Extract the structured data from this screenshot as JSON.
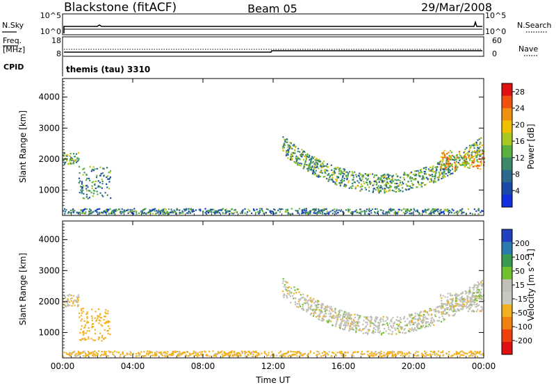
{
  "header": {
    "station": "Blackstone (fitACF)",
    "beam": "Beam 05",
    "date": "29/Mar/2008"
  },
  "top_panels": {
    "nsky_label": "N.Sky",
    "nsearch_label": "N.Search",
    "noise_ticks": [
      "10^5",
      "10^0"
    ],
    "noise_ticks_right": [
      "10^5",
      "10^0"
    ],
    "freq_label": "Freq.",
    "freq_unit": "[MHz]",
    "freq_ticks": [
      "18",
      "8"
    ],
    "nave_label": "Nave",
    "nave_ticks": [
      "60",
      "0"
    ],
    "cpid_label": "CPID",
    "cpid_text": "themis (tau) 3310"
  },
  "colors": {
    "power": [
      "#1030e0",
      "#1a4aa8",
      "#2a6a8c",
      "#3a8a6a",
      "#58b040",
      "#a8c820",
      "#f0c000",
      "#f09010",
      "#f05010",
      "#e01010"
    ],
    "velocity": [
      "#2040c0",
      "#2a7ab0",
      "#3a9a50",
      "#70c030",
      "#c0c0b8",
      "#c8c8c0",
      "#f0b020",
      "#f08010",
      "#f04010",
      "#e01010"
    ]
  },
  "chart_data": [
    {
      "type": "heatmap",
      "title": "",
      "xlabel": "",
      "ylabel": "Slant Range [km]",
      "xticks": [
        "00:00",
        "04:00",
        "08:00",
        "12:00",
        "16:00",
        "20:00",
        "00:00"
      ],
      "yticks": [
        "1000",
        "2000",
        "3000",
        "4000"
      ],
      "xlim": [
        0,
        24
      ],
      "ylim": [
        180,
        4600
      ],
      "colorbar": {
        "label": "Power [dB]",
        "ticks": [
          "4",
          "8",
          "12",
          "16",
          "20",
          "24",
          "28"
        ],
        "range": [
          0,
          30
        ]
      },
      "regions": [
        {
          "t0": 0.0,
          "t1": 0.9,
          "r0": 1850,
          "r1": 2250,
          "level": 0.4
        },
        {
          "t0": 0.9,
          "t1": 2.7,
          "r0": 750,
          "r1": 1800,
          "level": 0.3
        },
        {
          "t0": 12.5,
          "t1": 23.9,
          "r0": 850,
          "r1": 2900,
          "level": 0.35,
          "shape": "arc"
        },
        {
          "t0": 21.5,
          "t1": 24.0,
          "r0": 1700,
          "r1": 2300,
          "level": 0.6
        },
        {
          "t0": 0.0,
          "t1": 24.0,
          "r0": 250,
          "r1": 420,
          "level": 0.25
        }
      ]
    },
    {
      "type": "heatmap",
      "title": "",
      "xlabel": "Time UT",
      "ylabel": "Slant Range [km]",
      "xticks": [
        "00:00",
        "04:00",
        "08:00",
        "12:00",
        "16:00",
        "20:00",
        "00:00"
      ],
      "yticks": [
        "1000",
        "2000",
        "3000",
        "4000"
      ],
      "xlim": [
        0,
        24
      ],
      "ylim": [
        180,
        4600
      ],
      "colorbar": {
        "label": "Velocity [m s^-1]",
        "ticks": [
          "200",
          "100",
          "50",
          "15",
          "-15",
          "-50",
          "-100",
          "-200"
        ],
        "range": [
          -250,
          250
        ]
      },
      "regions": [
        {
          "t0": 0.0,
          "t1": 0.9,
          "r0": 1850,
          "r1": 2250,
          "velocity": -10
        },
        {
          "t0": 0.9,
          "t1": 2.7,
          "r0": 750,
          "r1": 1800,
          "velocity": -40
        },
        {
          "t0": 12.5,
          "t1": 23.9,
          "r0": 850,
          "r1": 2900,
          "velocity": 0,
          "shape": "arc"
        },
        {
          "t0": 21.5,
          "t1": 24.0,
          "r0": 1700,
          "r1": 2300,
          "velocity": 0
        },
        {
          "t0": 0.0,
          "t1": 24.0,
          "r0": 250,
          "r1": 420,
          "velocity": -30
        }
      ]
    }
  ]
}
